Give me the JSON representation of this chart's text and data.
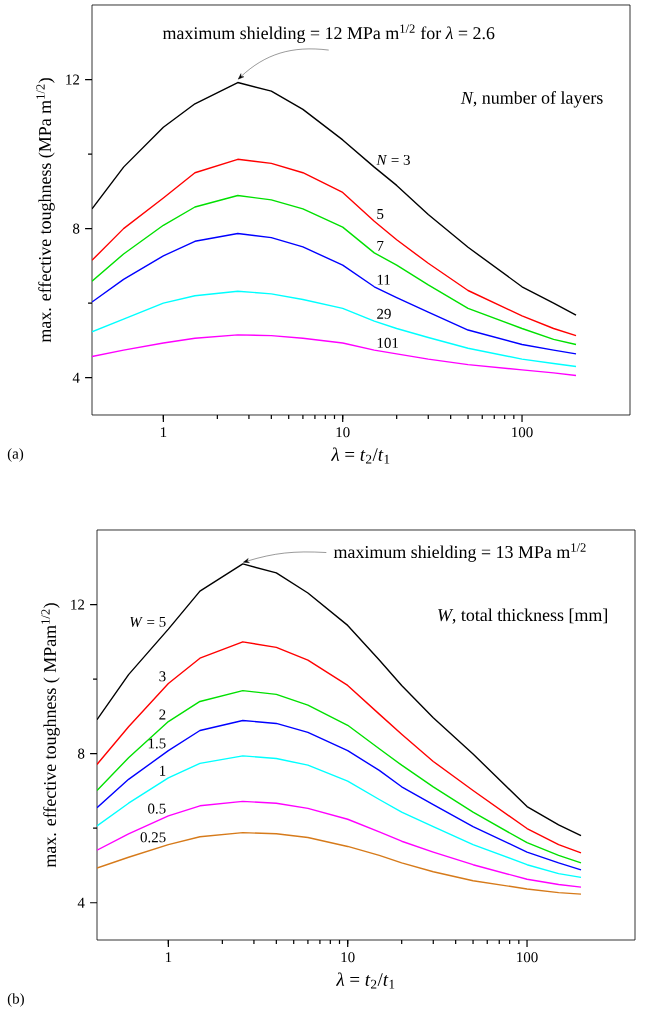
{
  "chart_data": [
    {
      "type": "line",
      "xlabel": "*λ* = *t*$_{2}$/*t*$_{1}$",
      "ylabel": "max. effective toughness (MPa m$^{1/2}$)",
      "legend_title": "*N*, number of layers",
      "log": "x",
      "marker": "none",
      "line_style": "solid",
      "xlim": [
        0.4,
        400
      ],
      "xticks": [
        1,
        10,
        100
      ],
      "ylim": [
        3,
        14
      ],
      "yticks": [
        4,
        8,
        12
      ],
      "x": [
        0.4,
        0.6,
        1,
        1.5,
        2.6,
        4,
        6,
        10,
        15,
        20,
        30,
        50,
        100,
        150,
        200
      ],
      "annotations": [
        {
          "text": "maximum shielding = 12 MPa m$^{1/2}$ for *λ* = 2.6",
          "x": 2.6,
          "y": 11.92
        },
        "(a)"
      ],
      "series": [
        {
          "name": "*N* = 3",
          "color": "#000000",
          "values": [
            8.53,
            9.65,
            10.72,
            11.35,
            11.92,
            11.69,
            11.2,
            10.38,
            9.65,
            9.16,
            8.38,
            7.5,
            6.44,
            6.0,
            5.68
          ]
        },
        {
          "name": "5",
          "color": "#ff0000",
          "values": [
            7.15,
            8.0,
            8.82,
            9.5,
            9.86,
            9.75,
            9.5,
            8.97,
            8.2,
            7.7,
            7.07,
            6.34,
            5.66,
            5.32,
            5.13
          ]
        },
        {
          "name": "7",
          "color": "#00e000",
          "values": [
            6.59,
            7.32,
            8.09,
            8.58,
            8.89,
            8.77,
            8.53,
            8.04,
            7.35,
            7.02,
            6.49,
            5.86,
            5.32,
            5.03,
            4.89
          ]
        },
        {
          "name": "11",
          "color": "#0000ff",
          "values": [
            6.03,
            6.64,
            7.27,
            7.66,
            7.87,
            7.76,
            7.51,
            7.02,
            6.44,
            6.15,
            5.76,
            5.28,
            4.89,
            4.74,
            4.64
          ]
        },
        {
          "name": "29",
          "color": "#00ffff",
          "values": [
            5.23,
            5.57,
            6.0,
            6.2,
            6.32,
            6.25,
            6.1,
            5.86,
            5.52,
            5.32,
            5.08,
            4.79,
            4.5,
            4.38,
            4.3
          ]
        },
        {
          "name": "101",
          "color": "#ff00ff",
          "values": [
            4.57,
            4.74,
            4.93,
            5.06,
            5.15,
            5.13,
            5.06,
            4.93,
            4.74,
            4.64,
            4.5,
            4.35,
            4.21,
            4.13,
            4.06
          ]
        }
      ]
    },
    {
      "type": "line",
      "xlabel": "*λ* = *t*$_{2}$/*t*$_{1}$",
      "ylabel": "max. effective toughness ( MPam$^{1/2}$)",
      "legend_title": "*W*, total thickness [mm]",
      "log": "x",
      "marker": "none",
      "line_style": "solid",
      "xlim": [
        0.4,
        400
      ],
      "xticks": [
        1,
        10,
        100
      ],
      "ylim": [
        3,
        14
      ],
      "yticks": [
        4,
        8,
        12
      ],
      "x": [
        0.4,
        0.6,
        1,
        1.5,
        2.6,
        4,
        6,
        10,
        15,
        20,
        30,
        50,
        100,
        150,
        200
      ],
      "annotations": [
        {
          "text": "maximum shielding = 13 MPa m$^{1/2}$",
          "x": 2.6,
          "y": 13.09
        },
        "(b)"
      ],
      "series": [
        {
          "name": "*W* = 5",
          "color": "#000000",
          "values": [
            8.91,
            10.12,
            11.34,
            12.36,
            13.09,
            12.85,
            12.31,
            11.44,
            10.51,
            9.83,
            8.96,
            7.99,
            6.58,
            6.09,
            5.8
          ]
        },
        {
          "name": "3",
          "color": "#ff0000",
          "values": [
            7.71,
            8.72,
            9.88,
            10.56,
            11.0,
            10.85,
            10.51,
            9.83,
            9.06,
            8.52,
            7.79,
            7.01,
            5.99,
            5.56,
            5.34
          ]
        },
        {
          "name": "2",
          "color": "#00e000",
          "values": [
            7.01,
            7.89,
            8.86,
            9.4,
            9.69,
            9.59,
            9.3,
            8.76,
            8.13,
            7.69,
            7.11,
            6.43,
            5.61,
            5.27,
            5.07
          ]
        },
        {
          "name": "1.5",
          "color": "#0000ff",
          "values": [
            6.55,
            7.31,
            8.08,
            8.62,
            8.89,
            8.81,
            8.57,
            8.08,
            7.55,
            7.11,
            6.63,
            6.04,
            5.36,
            5.07,
            4.88
          ]
        },
        {
          "name": "1",
          "color": "#00ffff",
          "values": [
            6.06,
            6.67,
            7.35,
            7.74,
            7.94,
            7.87,
            7.69,
            7.26,
            6.77,
            6.43,
            6.04,
            5.56,
            5.02,
            4.78,
            4.68
          ]
        },
        {
          "name": "0.5",
          "color": "#ff00ff",
          "values": [
            5.41,
            5.85,
            6.33,
            6.6,
            6.72,
            6.67,
            6.53,
            6.24,
            5.9,
            5.65,
            5.36,
            5.02,
            4.63,
            4.49,
            4.42
          ]
        },
        {
          "name": "0.25",
          "color": "#d67a1a",
          "values": [
            4.93,
            5.22,
            5.56,
            5.77,
            5.88,
            5.85,
            5.75,
            5.51,
            5.27,
            5.07,
            4.83,
            4.59,
            4.37,
            4.27,
            4.23
          ]
        }
      ]
    }
  ]
}
